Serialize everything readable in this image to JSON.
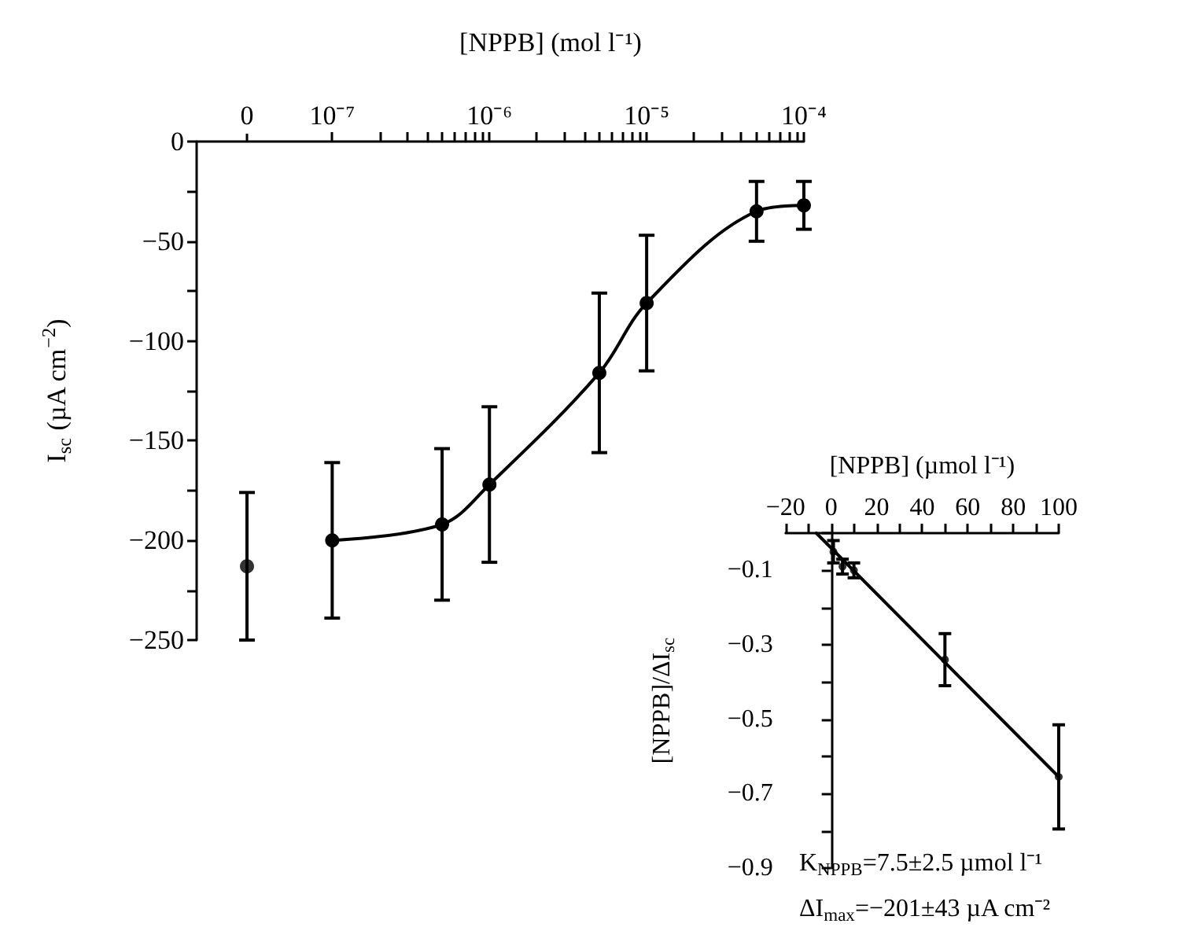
{
  "chart_data": [
    {
      "type": "scatter",
      "categories": [
        "0"
      ],
      "values": [
        -213
      ],
      "errors": [
        37
      ],
      "color": "#000000",
      "marker": "circle",
      "ylim": [
        -250,
        0
      ],
      "yticks": [
        0,
        {
          "value": -25,
          "label": null
        },
        -50,
        {
          "value": -75,
          "label": null
        },
        -100,
        {
          "value": -125,
          "label": null
        },
        -150,
        {
          "value": -175,
          "label": null
        },
        -200,
        {
          "value": -225,
          "label": null
        },
        -250
      ],
      "ylabel": "I$_{sc}$ (µA cm$^{−2}$)"
    },
    {
      "type": "line",
      "x": [
        1e-07,
        5e-07,
        1e-06,
        5e-06,
        1e-05,
        5e-05,
        0.0001
      ],
      "values": [
        -200,
        -192,
        -172,
        -116,
        -81,
        -35,
        -32
      ],
      "errors": [
        39,
        38,
        39,
        40,
        34,
        15,
        12
      ],
      "color": "#000000",
      "marker": "circle",
      "line_style": "solid",
      "log": "x",
      "xlim": [
        6e-08,
        0.0001
      ],
      "xticks": [
        {
          "value": 1e-07,
          "label": "10⁻⁷"
        },
        {
          "value": 2e-07,
          "label": null
        },
        {
          "value": 3e-07,
          "label": null
        },
        {
          "value": 4e-07,
          "label": null
        },
        {
          "value": 5e-07,
          "label": null
        },
        {
          "value": 6e-07,
          "label": null
        },
        {
          "value": 7e-07,
          "label": null
        },
        {
          "value": 8e-07,
          "label": null
        },
        {
          "value": 9e-07,
          "label": null
        },
        {
          "value": 1e-06,
          "label": "10⁻⁶"
        },
        {
          "value": 2e-06,
          "label": null
        },
        {
          "value": 3e-06,
          "label": null
        },
        {
          "value": 4e-06,
          "label": null
        },
        {
          "value": 5e-06,
          "label": null
        },
        {
          "value": 6e-06,
          "label": null
        },
        {
          "value": 7e-06,
          "label": null
        },
        {
          "value": 8e-06,
          "label": null
        },
        {
          "value": 9e-06,
          "label": null
        },
        {
          "value": 1e-05,
          "label": "10⁻⁵"
        },
        {
          "value": 2e-05,
          "label": null
        },
        {
          "value": 3e-05,
          "label": null
        },
        {
          "value": 4e-05,
          "label": null
        },
        {
          "value": 5e-05,
          "label": null
        },
        {
          "value": 6e-05,
          "label": null
        },
        {
          "value": 7e-05,
          "label": null
        },
        {
          "value": 8e-05,
          "label": null
        },
        {
          "value": 9e-05,
          "label": null
        },
        {
          "value": 0.0001,
          "label": "10⁻⁴"
        }
      ],
      "xlabel": "[NPPB] (mol l⁻¹)",
      "ylim": [
        -250,
        0
      ],
      "tick_labels": "x"
    },
    {
      "type": "scatter",
      "series": [
        {
          "color": "#000000",
          "x": [
            1,
            5,
            10,
            50,
            100
          ],
          "values": [
            -0.05,
            -0.09,
            -0.1,
            -0.34,
            -0.655
          ],
          "errors": [
            0.03,
            0.02,
            0.02,
            0.07,
            0.14
          ]
        },
        {
          "type": "line",
          "color": "#000000",
          "marker": "none",
          "x": [
            -6.5,
            100
          ],
          "values": [
            0,
            -0.655
          ]
        }
      ],
      "marker": "circle",
      "xlim": [
        -20,
        100
      ],
      "xticks": [
        -20,
        {
          "value": -10,
          "label": null
        },
        0,
        {
          "value": 10,
          "label": null
        },
        20,
        {
          "value": 30,
          "label": null
        },
        40,
        {
          "value": 50,
          "label": null
        },
        60,
        {
          "value": 70,
          "label": null
        },
        80,
        {
          "value": 90,
          "label": null
        },
        100
      ],
      "ylim": [
        -0.9,
        0
      ],
      "yticks": [
        {
          "value": 0,
          "label": null
        },
        -0.1,
        {
          "value": -0.2,
          "label": null
        },
        -0.3,
        {
          "value": -0.4,
          "label": null
        },
        -0.5,
        {
          "value": -0.6,
          "label": null
        },
        -0.7,
        {
          "value": -0.8,
          "label": null
        },
        -0.9
      ],
      "xlabel": "[NPPB] (µmol l⁻¹)",
      "ylabel": "[NPPB]/ΔI$_{sc}$",
      "annotations": [
        "K$_{NPPB}$=7.5±2.5 µmol l⁻¹",
        "ΔI$_{max}$=−201±43 µA cm⁻²"
      ]
    }
  ]
}
